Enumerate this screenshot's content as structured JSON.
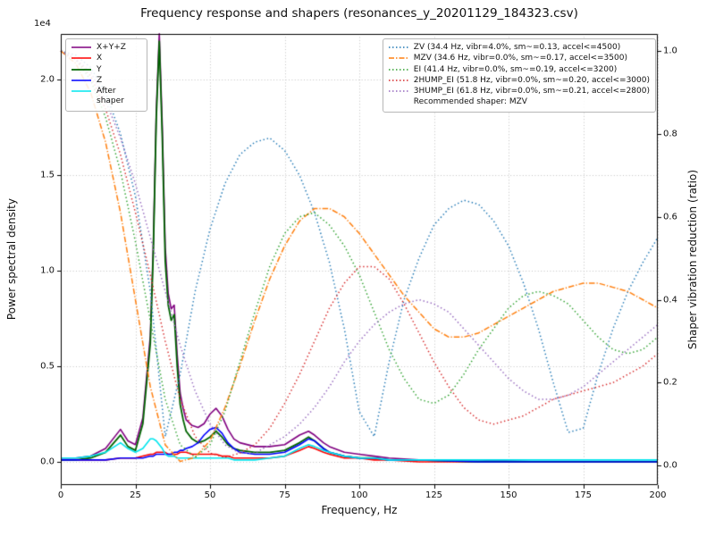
{
  "chart_data": {
    "type": "line",
    "title": "Frequency response and shapers (resonances_y_20201129_184323.csv)",
    "xlabel": "Frequency, Hz",
    "ylabel_left": "Power spectral density",
    "ylabel_right": "Shaper vibration reduction (ratio)",
    "offset_text": "1e4",
    "grid": true,
    "legend_left_position": "upper left",
    "legend_right_position": "upper right",
    "xlim": [
      0,
      200
    ],
    "xticks": [
      0,
      25,
      50,
      75,
      100,
      125,
      150,
      175,
      200
    ],
    "xtick_labels": [
      "0",
      "25",
      "50",
      "75",
      "100",
      "125",
      "150",
      "175",
      "200"
    ],
    "ylim_left": [
      -0.1215,
      2.2385
    ],
    "yticks_left": [
      0.0,
      0.5,
      1.0,
      1.5,
      2.0
    ],
    "ytick_left_labels": [
      "0.0",
      "0.5",
      "1.0",
      "1.5",
      "2.0"
    ],
    "ylim_right": [
      -0.047,
      1.041
    ],
    "yticks_right": [
      0.0,
      0.2,
      0.4,
      0.6,
      0.8,
      1.0
    ],
    "ytick_right_labels": [
      "0.0",
      "0.2",
      "0.4",
      "0.6",
      "0.8",
      "1.0"
    ],
    "psd_unit_scale": "1e4",
    "psd_x": [
      0,
      5,
      10,
      15,
      20,
      22.5,
      25,
      27.5,
      30,
      31,
      32,
      33,
      34,
      35,
      36,
      37,
      38,
      39,
      40,
      41,
      42,
      44,
      46,
      48,
      50,
      52,
      54,
      56,
      58,
      60,
      65,
      70,
      75,
      80,
      83,
      85,
      88,
      90,
      95,
      100,
      105,
      110,
      120,
      140,
      160,
      180,
      200
    ],
    "psd_series": [
      {
        "name": "X+Y+Z",
        "color": "#800080",
        "style": "solid",
        "width": 1.6,
        "values": [
          0.02,
          0.02,
          0.03,
          0.07,
          0.17,
          0.11,
          0.09,
          0.23,
          0.66,
          1.14,
          1.84,
          2.24,
          1.76,
          1.12,
          0.88,
          0.8,
          0.82,
          0.56,
          0.36,
          0.28,
          0.22,
          0.19,
          0.18,
          0.2,
          0.25,
          0.28,
          0.24,
          0.17,
          0.12,
          0.1,
          0.08,
          0.08,
          0.09,
          0.14,
          0.16,
          0.14,
          0.1,
          0.08,
          0.05,
          0.04,
          0.03,
          0.02,
          0.01,
          0.01,
          0.0,
          0.0,
          0.0
        ]
      },
      {
        "name": "X",
        "color": "#ff0000",
        "style": "solid",
        "width": 1.6,
        "values": [
          0.01,
          0.01,
          0.01,
          0.01,
          0.02,
          0.02,
          0.02,
          0.03,
          0.04,
          0.04,
          0.05,
          0.05,
          0.05,
          0.05,
          0.04,
          0.04,
          0.04,
          0.04,
          0.05,
          0.05,
          0.05,
          0.04,
          0.04,
          0.04,
          0.04,
          0.04,
          0.03,
          0.03,
          0.02,
          0.02,
          0.02,
          0.02,
          0.03,
          0.06,
          0.08,
          0.07,
          0.05,
          0.04,
          0.02,
          0.02,
          0.01,
          0.01,
          0.0,
          0.0,
          0.0,
          0.0,
          0.0
        ]
      },
      {
        "name": "Y",
        "color": "#006400",
        "style": "solid",
        "width": 1.8,
        "values": [
          0.01,
          0.01,
          0.02,
          0.05,
          0.14,
          0.08,
          0.06,
          0.2,
          0.62,
          1.1,
          1.8,
          2.2,
          1.7,
          1.05,
          0.82,
          0.74,
          0.77,
          0.5,
          0.3,
          0.22,
          0.16,
          0.12,
          0.1,
          0.11,
          0.13,
          0.16,
          0.13,
          0.09,
          0.07,
          0.06,
          0.05,
          0.05,
          0.06,
          0.1,
          0.13,
          0.11,
          0.07,
          0.05,
          0.03,
          0.02,
          0.02,
          0.01,
          0.01,
          0.0,
          0.0,
          0.0,
          0.0
        ]
      },
      {
        "name": "Z",
        "color": "#0000ff",
        "style": "solid",
        "width": 1.6,
        "values": [
          0.01,
          0.01,
          0.01,
          0.01,
          0.02,
          0.02,
          0.02,
          0.02,
          0.03,
          0.03,
          0.04,
          0.04,
          0.04,
          0.04,
          0.04,
          0.04,
          0.05,
          0.05,
          0.06,
          0.06,
          0.07,
          0.08,
          0.1,
          0.14,
          0.17,
          0.18,
          0.15,
          0.1,
          0.07,
          0.05,
          0.04,
          0.04,
          0.05,
          0.09,
          0.12,
          0.11,
          0.07,
          0.05,
          0.03,
          0.02,
          0.02,
          0.01,
          0.01,
          0.0,
          0.0,
          0.0,
          0.0
        ]
      },
      {
        "name": "After shaper",
        "color": "#00e5ee",
        "style": "solid",
        "width": 1.6,
        "values": [
          0.02,
          0.02,
          0.03,
          0.05,
          0.1,
          0.07,
          0.05,
          0.07,
          0.12,
          0.12,
          0.11,
          0.09,
          0.07,
          0.04,
          0.03,
          0.03,
          0.03,
          0.02,
          0.02,
          0.02,
          0.02,
          0.02,
          0.02,
          0.02,
          0.02,
          0.02,
          0.02,
          0.02,
          0.01,
          0.01,
          0.01,
          0.02,
          0.03,
          0.07,
          0.09,
          0.08,
          0.06,
          0.05,
          0.03,
          0.02,
          0.02,
          0.01,
          0.01,
          0.01,
          0.01,
          0.01,
          0.01
        ]
      }
    ],
    "shaper_x": [
      0,
      5,
      10,
      15,
      20,
      25,
      30,
      35,
      40,
      45,
      50,
      55,
      60,
      65,
      70,
      75,
      80,
      85,
      90,
      95,
      100,
      105,
      110,
      115,
      120,
      125,
      130,
      135,
      140,
      145,
      150,
      155,
      160,
      165,
      170,
      175,
      180,
      185,
      190,
      195,
      200
    ],
    "shaper_series": [
      {
        "name": "ZV",
        "label": "ZV (34.4 Hz, vibr=4.0%, sm~=0.13, accel<=4500)",
        "color": "#1f77b4",
        "style": "dotted",
        "width": 1.5,
        "values": [
          1.0,
          0.99,
          0.96,
          0.9,
          0.8,
          0.65,
          0.42,
          0.07,
          0.22,
          0.42,
          0.57,
          0.68,
          0.75,
          0.78,
          0.79,
          0.76,
          0.7,
          0.61,
          0.49,
          0.33,
          0.13,
          0.07,
          0.25,
          0.4,
          0.5,
          0.58,
          0.62,
          0.64,
          0.63,
          0.59,
          0.53,
          0.44,
          0.33,
          0.2,
          0.08,
          0.09,
          0.22,
          0.33,
          0.42,
          0.49,
          0.55
        ]
      },
      {
        "name": "MZV",
        "label": "MZV (34.6 Hz, vibr=0.0%, sm~=0.17, accel<=3500)",
        "color": "#ff7f0e",
        "style": "dashdot",
        "width": 1.5,
        "values": [
          1.0,
          0.97,
          0.9,
          0.78,
          0.61,
          0.4,
          0.19,
          0.05,
          0.01,
          0.02,
          0.06,
          0.14,
          0.24,
          0.35,
          0.45,
          0.53,
          0.59,
          0.62,
          0.62,
          0.6,
          0.56,
          0.51,
          0.46,
          0.41,
          0.37,
          0.33,
          0.31,
          0.31,
          0.32,
          0.34,
          0.36,
          0.38,
          0.4,
          0.42,
          0.43,
          0.44,
          0.44,
          0.43,
          0.42,
          0.4,
          0.38
        ]
      },
      {
        "name": "EI",
        "label": "EI (41.4 Hz, vibr=0.0%, sm~=0.19, accel<=3200)",
        "color": "#2ca02c",
        "style": "dotted",
        "width": 1.5,
        "values": [
          1.0,
          0.98,
          0.93,
          0.84,
          0.71,
          0.54,
          0.35,
          0.16,
          0.05,
          0.02,
          0.05,
          0.13,
          0.25,
          0.37,
          0.48,
          0.56,
          0.6,
          0.61,
          0.58,
          0.53,
          0.46,
          0.37,
          0.28,
          0.21,
          0.16,
          0.15,
          0.17,
          0.22,
          0.28,
          0.33,
          0.38,
          0.41,
          0.42,
          0.41,
          0.39,
          0.35,
          0.31,
          0.28,
          0.27,
          0.28,
          0.31
        ]
      },
      {
        "name": "2HUMP_EI",
        "label": "2HUMP_EI (51.8 Hz, vibr=0.0%, sm~=0.20, accel<=3000)",
        "color": "#d62728",
        "style": "dotted",
        "width": 1.5,
        "values": [
          1.0,
          0.98,
          0.94,
          0.86,
          0.75,
          0.61,
          0.46,
          0.3,
          0.16,
          0.07,
          0.03,
          0.02,
          0.03,
          0.05,
          0.09,
          0.15,
          0.22,
          0.3,
          0.38,
          0.44,
          0.48,
          0.48,
          0.45,
          0.39,
          0.32,
          0.25,
          0.19,
          0.14,
          0.11,
          0.1,
          0.11,
          0.12,
          0.14,
          0.16,
          0.17,
          0.18,
          0.19,
          0.2,
          0.22,
          0.24,
          0.27
        ]
      },
      {
        "name": "3HUMP_EI",
        "label": "3HUMP_EI (61.8 Hz, vibr=0.0%, sm~=0.21, accel<=2800)",
        "color": "#9467bd",
        "style": "dotted",
        "width": 1.5,
        "values": [
          1.0,
          0.98,
          0.95,
          0.88,
          0.79,
          0.68,
          0.55,
          0.42,
          0.29,
          0.18,
          0.1,
          0.05,
          0.03,
          0.03,
          0.05,
          0.07,
          0.1,
          0.14,
          0.19,
          0.25,
          0.3,
          0.34,
          0.37,
          0.39,
          0.4,
          0.39,
          0.37,
          0.33,
          0.29,
          0.25,
          0.21,
          0.18,
          0.16,
          0.16,
          0.17,
          0.19,
          0.22,
          0.25,
          0.28,
          0.31,
          0.34
        ]
      }
    ],
    "recommended_label": "Recommended shaper: MZV"
  }
}
